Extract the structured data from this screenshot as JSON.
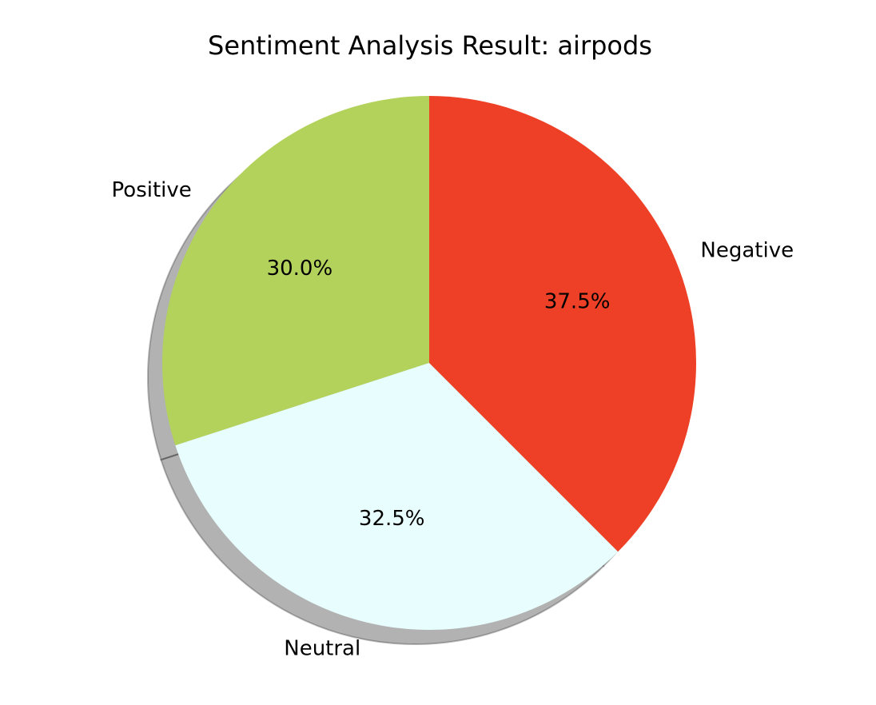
{
  "chart_data": {
    "type": "pie",
    "title": "Sentiment Analysis Result: airpods",
    "start_angle_deg": 90,
    "direction": "counterclockwise",
    "shadow": true,
    "slices": [
      {
        "label": "Positive",
        "value": 30.0,
        "pct_label": "30.0%",
        "color": "#b3d25c"
      },
      {
        "label": "Neutral",
        "value": 32.5,
        "pct_label": "32.5%",
        "color": "#e8fdfd"
      },
      {
        "label": "Negative",
        "value": 37.5,
        "pct_label": "37.5%",
        "color": "#ee4026"
      }
    ]
  }
}
